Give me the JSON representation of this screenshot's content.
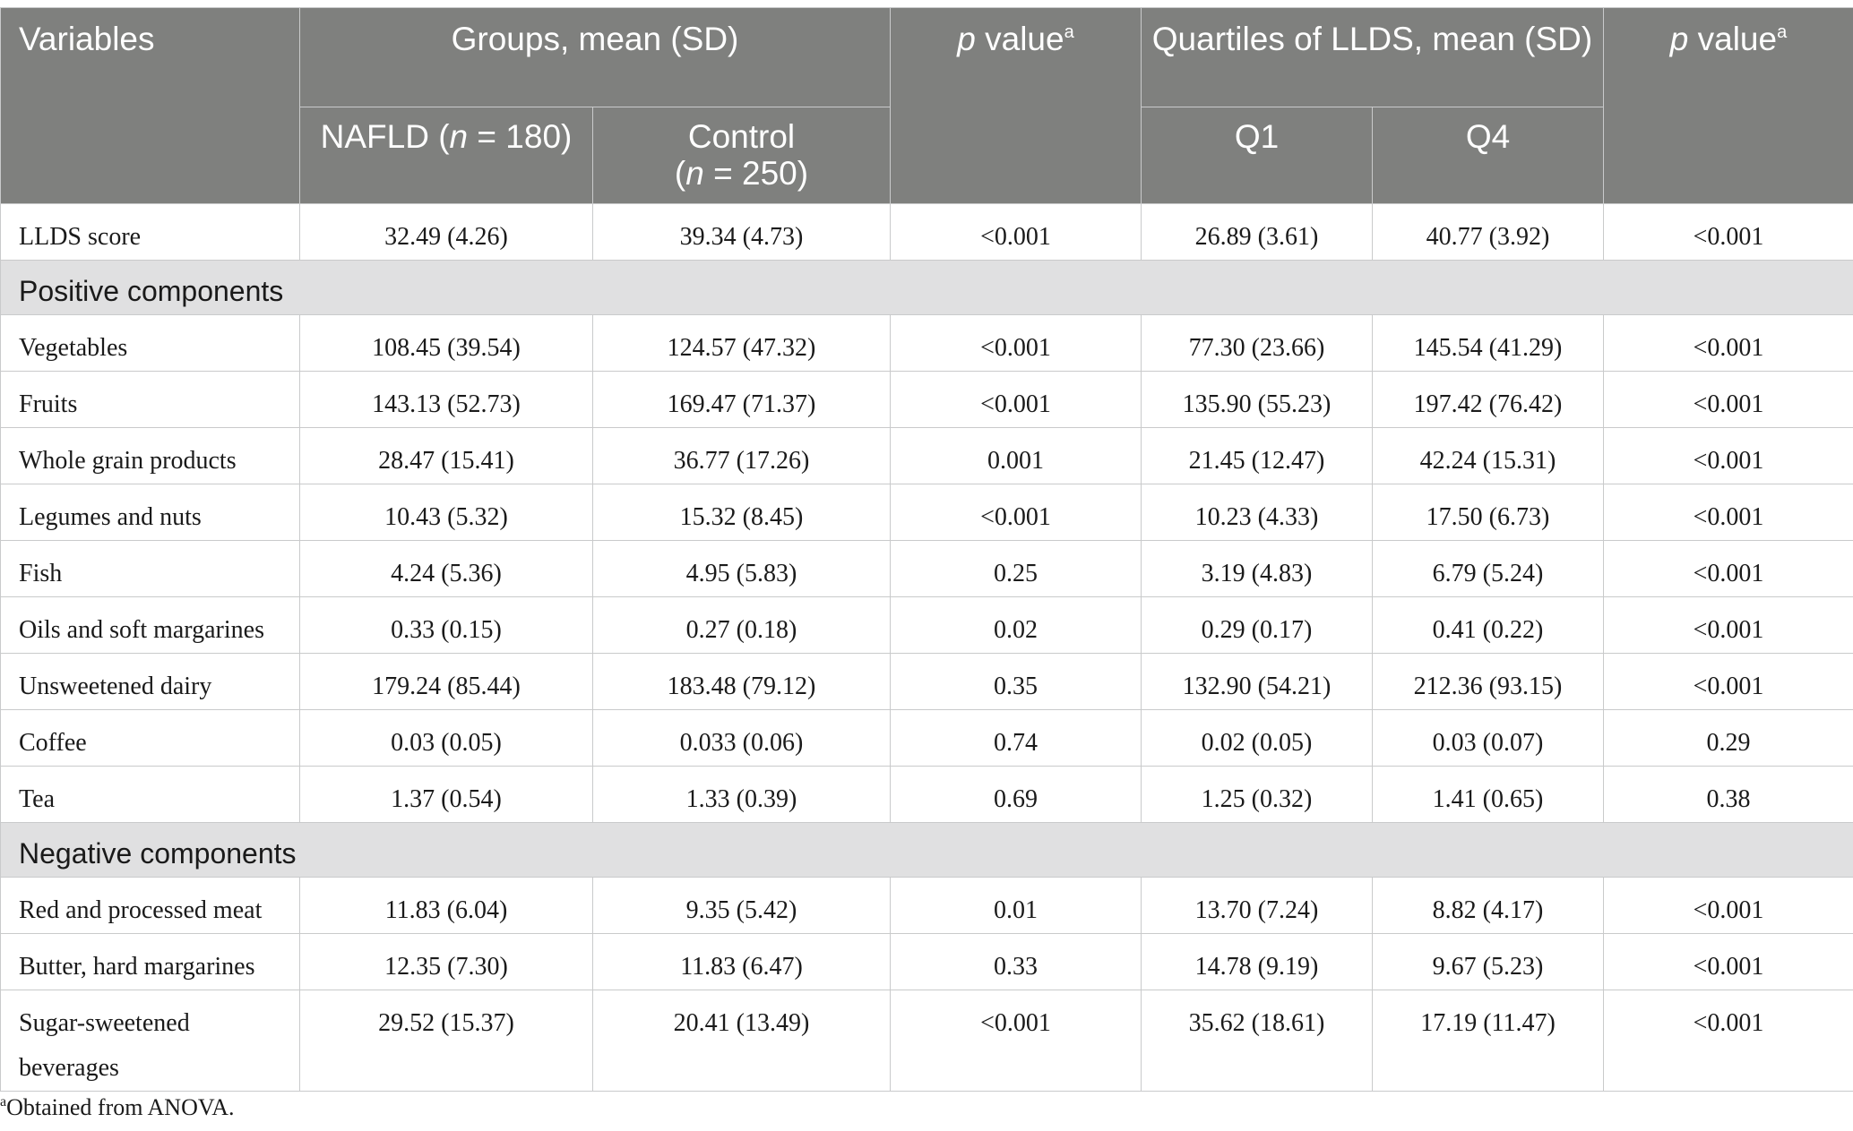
{
  "header": {
    "variables": "Variables",
    "groups": "Groups, mean (SD)",
    "p_value_prefix": "p",
    "p_value_suffix": " value",
    "p_value_sup": "a",
    "quartiles": "Quartiles of LLDS, mean (SD)",
    "nafld_prefix": "NAFLD (",
    "nafld_n": "n",
    "nafld_suffix": " = 180)",
    "control_line1": "Control",
    "control_prefix": "(",
    "control_n": "n",
    "control_suffix": " = 250)",
    "q1": "Q1",
    "q4": "Q4"
  },
  "rows": {
    "llds": [
      "LLDS score",
      "32.49 (4.26)",
      "39.34 (4.73)",
      "<0.001",
      "26.89 (3.61)",
      "40.77 (3.92)",
      "<0.001"
    ],
    "positive_title": "Positive components",
    "positive": [
      [
        "Vegetables",
        "108.45 (39.54)",
        "124.57 (47.32)",
        "<0.001",
        "77.30 (23.66)",
        "145.54 (41.29)",
        "<0.001"
      ],
      [
        "Fruits",
        "143.13 (52.73)",
        "169.47 (71.37)",
        "<0.001",
        "135.90 (55.23)",
        "197.42 (76.42)",
        "<0.001"
      ],
      [
        "Whole grain products",
        "28.47 (15.41)",
        "36.77 (17.26)",
        "0.001",
        "21.45 (12.47)",
        "42.24 (15.31)",
        "<0.001"
      ],
      [
        "Legumes and nuts",
        "10.43 (5.32)",
        "15.32 (8.45)",
        "<0.001",
        "10.23 (4.33)",
        "17.50 (6.73)",
        "<0.001"
      ],
      [
        "Fish",
        "4.24 (5.36)",
        "4.95 (5.83)",
        "0.25",
        "3.19 (4.83)",
        "6.79 (5.24)",
        "<0.001"
      ],
      [
        "Oils and soft margarines",
        "0.33 (0.15)",
        "0.27 (0.18)",
        "0.02",
        "0.29 (0.17)",
        "0.41 (0.22)",
        "<0.001"
      ],
      [
        "Unsweetened dairy",
        "179.24 (85.44)",
        "183.48 (79.12)",
        "0.35",
        "132.90 (54.21)",
        "212.36 (93.15)",
        "<0.001"
      ],
      [
        "Coffee",
        "0.03 (0.05)",
        "0.033 (0.06)",
        "0.74",
        "0.02 (0.05)",
        "0.03 (0.07)",
        "0.29"
      ],
      [
        "Tea",
        "1.37 (0.54)",
        "1.33 (0.39)",
        "0.69",
        "1.25 (0.32)",
        "1.41 (0.65)",
        "0.38"
      ]
    ],
    "negative_title": "Negative components",
    "negative": [
      [
        "Red and processed meat",
        "11.83 (6.04)",
        "9.35 (5.42)",
        "0.01",
        "13.70 (7.24)",
        "8.82 (4.17)",
        "<0.001"
      ],
      [
        "Butter, hard margarines",
        "12.35 (7.30)",
        "11.83 (6.47)",
        "0.33",
        "14.78 (9.19)",
        "9.67 (5.23)",
        "<0.001"
      ]
    ],
    "ssb": {
      "line1": "Sugar-sweetened",
      "line2": "beverages",
      "values": [
        "29.52 (15.37)",
        "20.41 (13.49)",
        "<0.001",
        "35.62 (18.61)",
        "17.19 (11.47)",
        "<0.001"
      ]
    }
  },
  "footnote": {
    "sup": "a",
    "text": "Obtained from ANOVA."
  }
}
